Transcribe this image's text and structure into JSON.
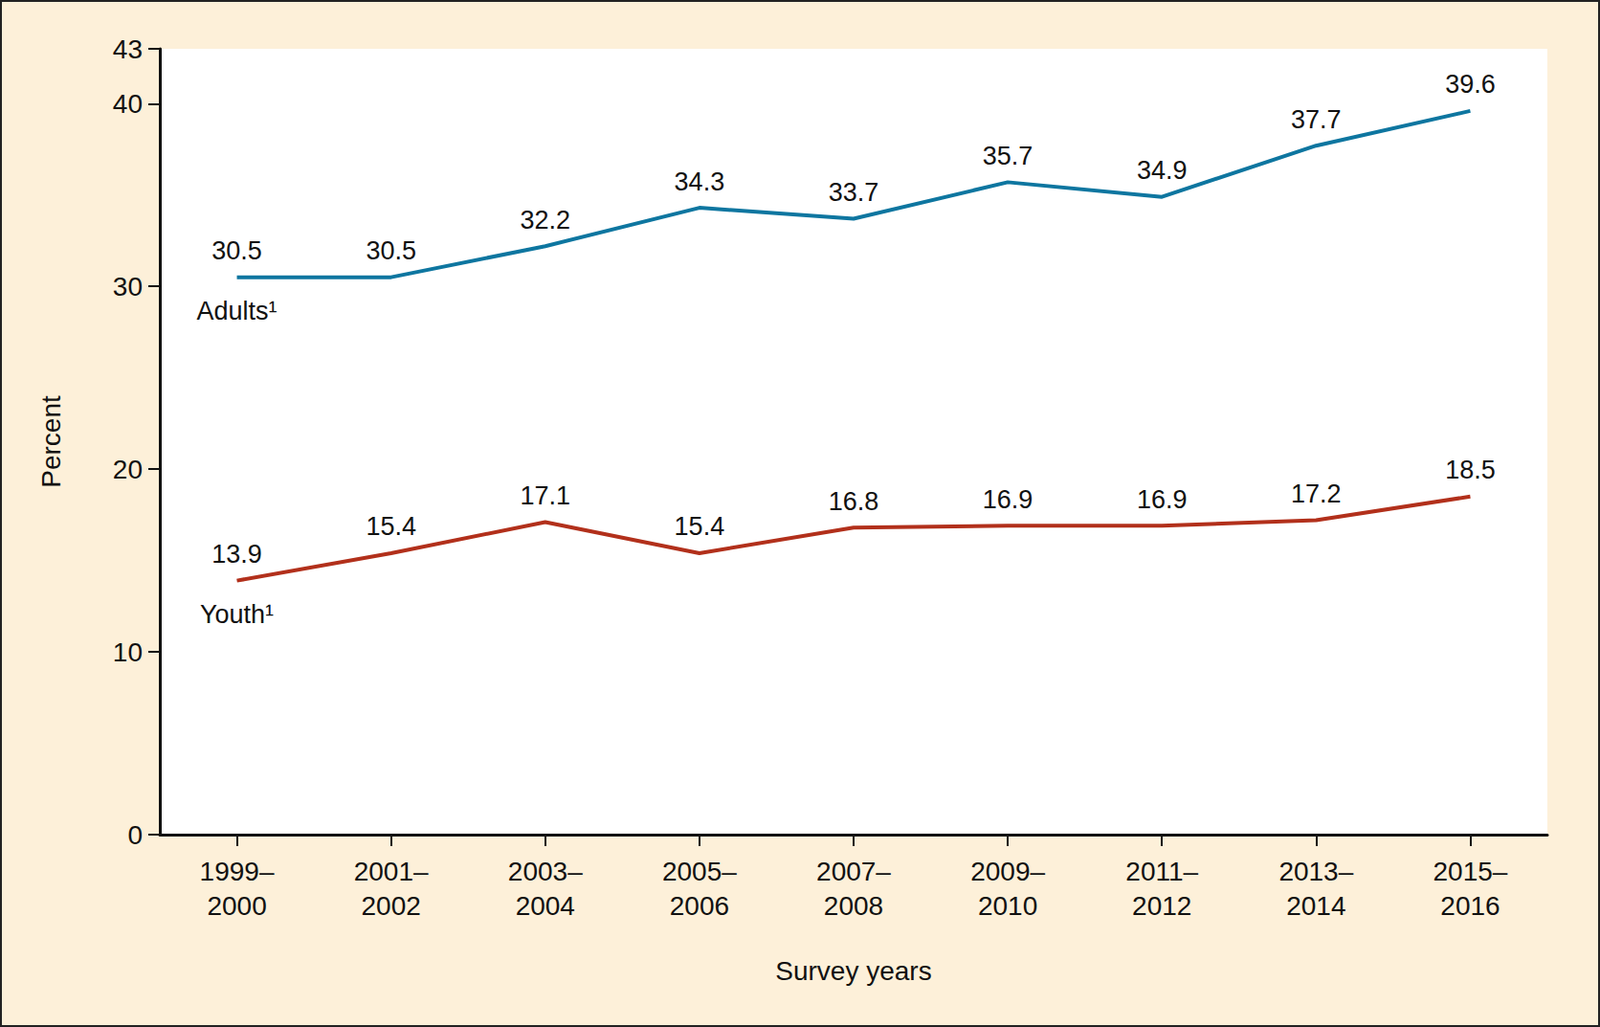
{
  "chart_data": {
    "type": "line",
    "x_label": "Survey years",
    "y_label": "Percent",
    "categories": [
      "1999–\n2000",
      "2001–\n2002",
      "2003–\n2004",
      "2005–\n2006",
      "2007–\n2008",
      "2009–\n2010",
      "2011–\n2012",
      "2013–\n2014",
      "2015–\n2016"
    ],
    "series": [
      {
        "name": "Adults¹",
        "color": "#0e76a0",
        "values": [
          30.5,
          30.5,
          32.2,
          34.3,
          33.7,
          35.7,
          34.9,
          37.7,
          39.6
        ]
      },
      {
        "name": "Youth¹",
        "color": "#b2301b",
        "values": [
          13.9,
          15.4,
          17.1,
          15.4,
          16.8,
          16.9,
          16.9,
          17.2,
          18.5
        ]
      }
    ],
    "ylim": [
      0,
      43
    ],
    "yticks": [
      0,
      10,
      20,
      30,
      40
    ],
    "grid": false,
    "data_labels": true
  }
}
